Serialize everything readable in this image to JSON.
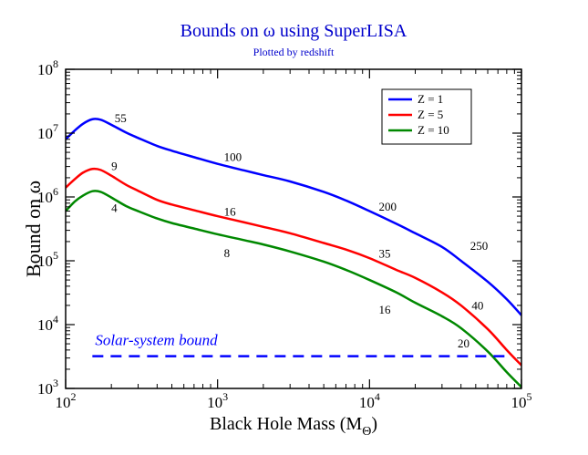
{
  "chart_data": {
    "type": "line",
    "title": "Bounds on ω  using SuperLISA",
    "subtitle": "Plotted by redshift",
    "xlabel": "Black Hole Mass (M",
    "xlabel_sub": "Θ",
    "xlabel_close": ")",
    "ylabel": "Bound on ω",
    "xscale": "log",
    "yscale": "log",
    "xlim": [
      100,
      100000
    ],
    "ylim": [
      1000,
      100000000
    ],
    "x_ticks": [
      {
        "value": 100,
        "base": "10",
        "exp": "2"
      },
      {
        "value": 1000,
        "base": "10",
        "exp": "3"
      },
      {
        "value": 10000,
        "base": "10",
        "exp": "4"
      },
      {
        "value": 100000,
        "base": "10",
        "exp": "5"
      }
    ],
    "y_ticks": [
      {
        "value": 1000,
        "base": "10",
        "exp": "3"
      },
      {
        "value": 10000,
        "base": "10",
        "exp": "4"
      },
      {
        "value": 100000,
        "base": "10",
        "exp": "5"
      },
      {
        "value": 1000000,
        "base": "10",
        "exp": "6"
      },
      {
        "value": 10000000,
        "base": "10",
        "exp": "7"
      },
      {
        "value": 100000000,
        "base": "10",
        "exp": "8"
      }
    ],
    "legend_position": "top-right",
    "series": [
      {
        "name": "Z = 1",
        "color": "#0000ff",
        "x": [
          100,
          115,
          130,
          150,
          170,
          200,
          250,
          300,
          400,
          500,
          700,
          1000,
          1500,
          2000,
          3000,
          5000,
          7000,
          10000,
          15000,
          20000,
          30000,
          40000,
          60000,
          80000,
          100000
        ],
        "y": [
          8000000,
          11000000,
          14000000,
          16500000,
          16200000,
          13500000,
          10200000,
          8400000,
          6300000,
          5300000,
          4200000,
          3300000,
          2600000,
          2200000,
          1750000,
          1200000,
          880000,
          600000,
          380000,
          270000,
          165000,
          100000,
          47000,
          25000,
          14000
        ]
      },
      {
        "name": "Z = 5",
        "color": "#ff0000",
        "x": [
          100,
          115,
          130,
          150,
          170,
          200,
          250,
          300,
          400,
          500,
          700,
          1000,
          1500,
          2000,
          3000,
          5000,
          7000,
          10000,
          15000,
          20000,
          30000,
          40000,
          60000,
          80000,
          100000
        ],
        "y": [
          1400000,
          1900000,
          2400000,
          2750000,
          2650000,
          2150000,
          1550000,
          1250000,
          900000,
          760000,
          620000,
          500000,
          400000,
          340000,
          270000,
          190000,
          150000,
          110000,
          72000,
          54000,
          32000,
          20000,
          8500,
          4000,
          2300
        ]
      },
      {
        "name": "Z = 10",
        "color": "#008800",
        "x": [
          100,
          115,
          130,
          150,
          170,
          200,
          250,
          300,
          400,
          500,
          700,
          1000,
          1500,
          2000,
          3000,
          5000,
          7000,
          10000,
          15000,
          20000,
          30000,
          40000,
          60000,
          80000,
          100000
        ],
        "y": [
          600000,
          850000,
          1050000,
          1230000,
          1200000,
          980000,
          720000,
          600000,
          460000,
          390000,
          320000,
          260000,
          210000,
          180000,
          140000,
          97000,
          72000,
          50000,
          32000,
          22000,
          13500,
          8800,
          3800,
          1800,
          1050
        ]
      }
    ],
    "reference_line": {
      "name": "Solar-system bound",
      "value": 3200,
      "x_range": [
        150,
        80000
      ],
      "color": "#0000ff",
      "style": "dashed"
    },
    "annotations": [
      {
        "text": "55",
        "x": 210,
        "y": 17000000
      },
      {
        "text": "100",
        "x": 1100,
        "y": 4200000
      },
      {
        "text": "200",
        "x": 11500,
        "y": 700000
      },
      {
        "text": "250",
        "x": 46000,
        "y": 170000
      },
      {
        "text": "9",
        "x": 200,
        "y": 3000000
      },
      {
        "text": "16",
        "x": 1100,
        "y": 580000
      },
      {
        "text": "35",
        "x": 11500,
        "y": 128000
      },
      {
        "text": "40",
        "x": 47000,
        "y": 19500
      },
      {
        "text": "4",
        "x": 200,
        "y": 660000
      },
      {
        "text": "8",
        "x": 1100,
        "y": 130000
      },
      {
        "text": "16",
        "x": 11500,
        "y": 17000
      },
      {
        "text": "20",
        "x": 38000,
        "y": 5000
      }
    ]
  }
}
